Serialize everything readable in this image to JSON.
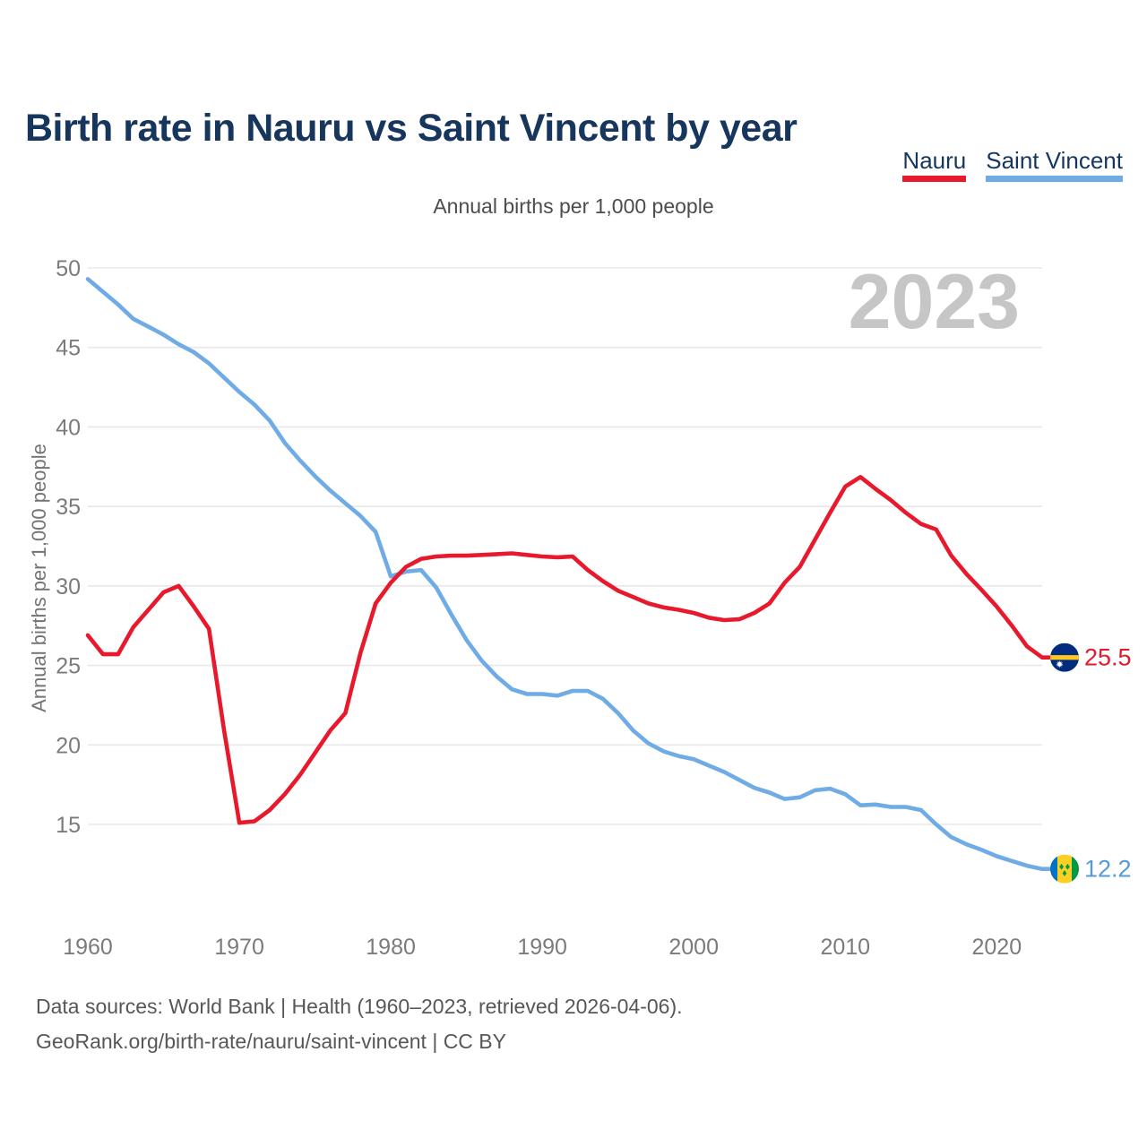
{
  "page": {
    "title": "Birth rate in Nauru vs Saint Vincent by year",
    "subtitle": "Annual births per 1,000 people",
    "y_axis_label": "Annual births per 1,000 people",
    "watermark": "2023",
    "footer_line1": "Data sources: World Bank | Health (1960–2023, retrieved 2026-04-06).",
    "footer_line2": "GeoRank.org/birth-rate/nauru/saint-vincent | CC BY"
  },
  "legend": [
    {
      "label": "Nauru",
      "color": "#e8192c"
    },
    {
      "label": "Saint Vincent",
      "color": "#6fabe4"
    }
  ],
  "chart_data": {
    "type": "line",
    "title": "Birth rate in Nauru vs Saint Vincent by year",
    "subtitle": "Annual births per 1,000 people",
    "ylabel": "Annual births per 1,000 people",
    "xlabel": "",
    "grid": true,
    "ylim": [
      11.5,
      50.5
    ],
    "xlim": [
      1960,
      2023
    ],
    "y_ticks": [
      15,
      20,
      25,
      30,
      35,
      40,
      45,
      50
    ],
    "x_ticks": [
      1960,
      1970,
      1980,
      1990,
      2000,
      2010,
      2020
    ],
    "x": [
      1960,
      1961,
      1962,
      1963,
      1964,
      1965,
      1966,
      1967,
      1968,
      1969,
      1970,
      1971,
      1972,
      1973,
      1974,
      1975,
      1976,
      1977,
      1978,
      1979,
      1980,
      1981,
      1982,
      1983,
      1984,
      1985,
      1986,
      1987,
      1988,
      1989,
      1990,
      1991,
      1992,
      1993,
      1994,
      1995,
      1996,
      1997,
      1998,
      1999,
      2000,
      2001,
      2002,
      2003,
      2004,
      2005,
      2006,
      2007,
      2008,
      2009,
      2010,
      2011,
      2012,
      2013,
      2014,
      2015,
      2016,
      2017,
      2018,
      2019,
      2020,
      2021,
      2022,
      2023
    ],
    "series": [
      {
        "name": "Nauru",
        "color": "#e8192c",
        "end_label": "25.5",
        "flag": "nauru",
        "values": [
          26.9,
          25.7,
          25.7,
          27.4,
          28.5,
          29.6,
          30.0,
          28.7,
          27.3,
          20.9,
          15.1,
          15.2,
          15.9,
          16.9,
          18.1,
          19.5,
          20.9,
          22.0,
          25.8,
          28.9,
          30.2,
          31.2,
          31.7,
          31.85,
          31.9,
          31.9,
          31.95,
          32.0,
          32.05,
          31.95,
          31.85,
          31.8,
          31.85,
          31.0,
          30.3,
          29.7,
          29.3,
          28.9,
          28.65,
          28.5,
          28.3,
          28.0,
          27.85,
          27.9,
          28.3,
          28.9,
          30.2,
          31.2,
          32.9,
          34.6,
          36.25,
          36.85,
          36.1,
          35.4,
          34.6,
          33.9,
          33.55,
          31.9,
          30.75,
          29.75,
          28.7,
          27.5,
          26.2,
          25.5
        ]
      },
      {
        "name": "Saint Vincent",
        "color": "#6fabe4",
        "end_label_color": "#569ad9",
        "end_label": "12.2",
        "flag": "saint-vincent",
        "values": [
          49.3,
          48.5,
          47.7,
          46.8,
          46.3,
          45.8,
          45.2,
          44.7,
          44.0,
          43.1,
          42.2,
          41.4,
          40.4,
          39.0,
          37.9,
          36.9,
          36.0,
          35.2,
          34.4,
          33.4,
          30.6,
          30.9,
          31.0,
          29.9,
          28.2,
          26.6,
          25.3,
          24.3,
          23.5,
          23.2,
          23.2,
          23.1,
          23.4,
          23.4,
          22.9,
          22.0,
          20.9,
          20.1,
          19.6,
          19.3,
          19.1,
          18.7,
          18.3,
          17.8,
          17.3,
          17.0,
          16.6,
          16.7,
          17.15,
          17.25,
          16.9,
          16.2,
          16.25,
          16.1,
          16.1,
          15.9,
          15.0,
          14.2,
          13.75,
          13.4,
          13.0,
          12.7,
          12.4,
          12.2
        ]
      }
    ],
    "legend_position": "top-right",
    "watermark": "2023"
  },
  "flags": {
    "nauru": {
      "blue": "#002b7f",
      "yellow": "#ffc61e",
      "star": "#ffffff"
    },
    "saint_vincent": {
      "blue": "#0072c6",
      "yellow": "#fcd022",
      "green": "#009a44"
    }
  }
}
